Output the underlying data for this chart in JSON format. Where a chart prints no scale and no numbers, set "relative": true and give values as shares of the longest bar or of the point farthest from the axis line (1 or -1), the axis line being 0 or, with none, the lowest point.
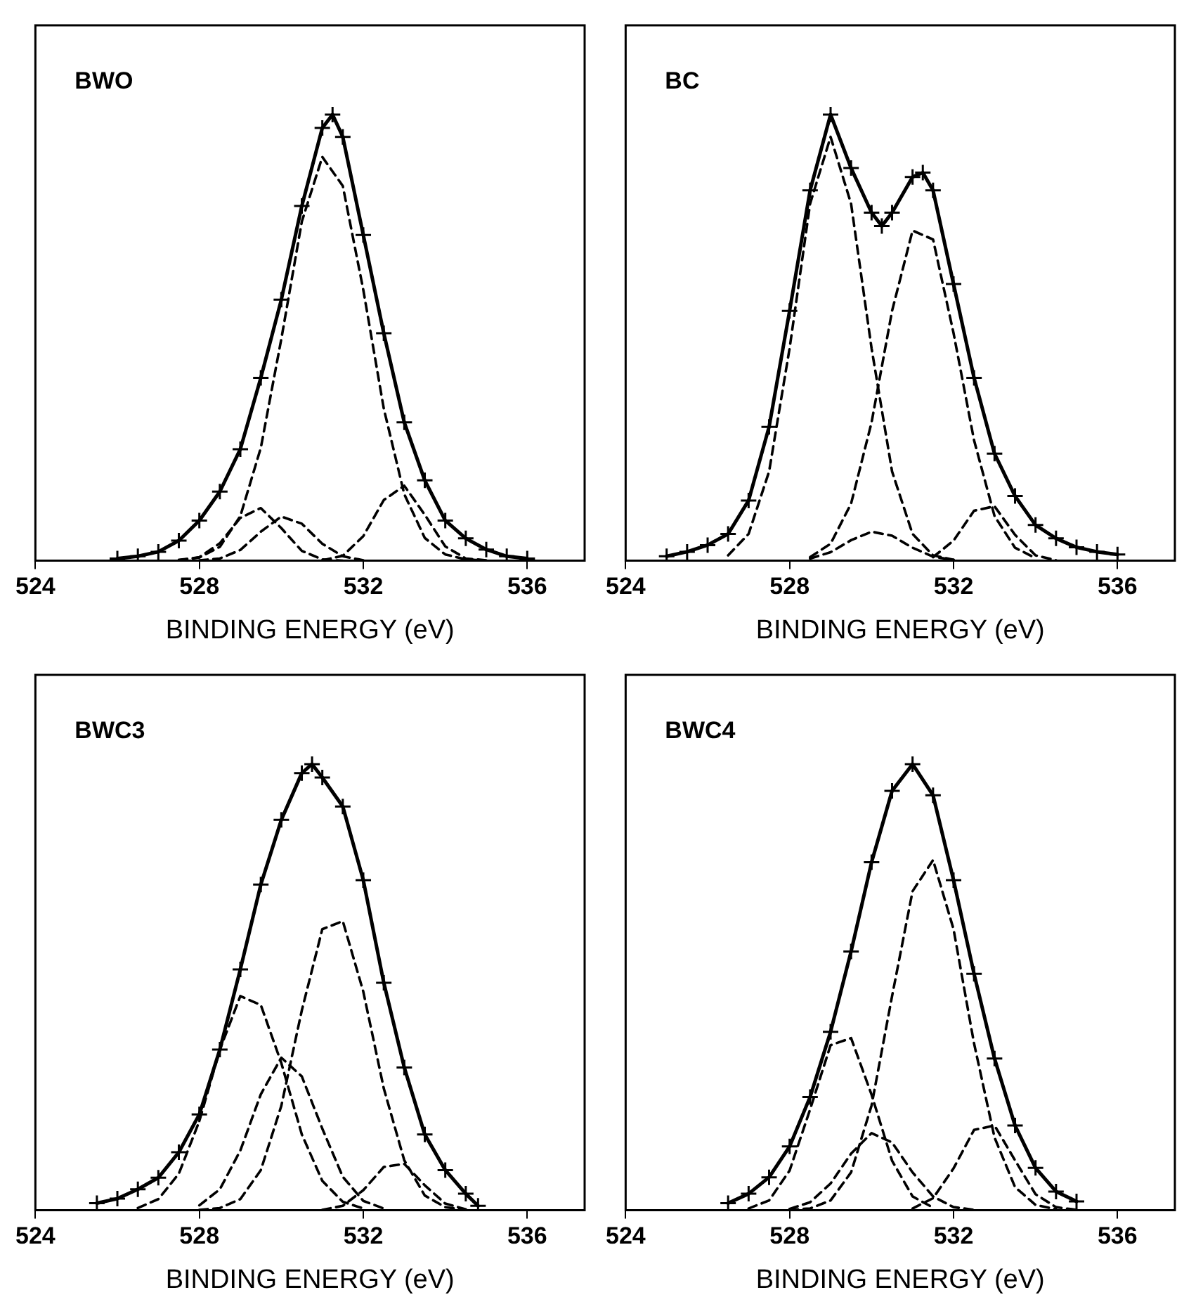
{
  "chart_data": [
    {
      "type": "line",
      "relative": true,
      "xlabel": "BINDING ENERGY (eV)",
      "xlim": [
        524,
        537.4
      ],
      "xticks": [
        524,
        528,
        532,
        536
      ],
      "annotations": [
        "BWO"
      ],
      "series": [
        {
          "color": "#000000",
          "marker": "cross",
          "line_style": "solid",
          "x": [
            526,
            526.5,
            527,
            527.5,
            528,
            528.5,
            529,
            529.5,
            530,
            530.5,
            531,
            531.25,
            531.5,
            532,
            532.5,
            533,
            533.5,
            534,
            534.5,
            535,
            535.5,
            536
          ],
          "values": [
            0.005,
            0.01,
            0.02,
            0.045,
            0.09,
            0.155,
            0.25,
            0.41,
            0.585,
            0.795,
            0.97,
            1,
            0.95,
            0.73,
            0.51,
            0.31,
            0.18,
            0.09,
            0.05,
            0.025,
            0.01,
            0.005
          ]
        },
        {
          "color": "#000000",
          "marker": "none",
          "line_style": "dashed",
          "x": [
            527.5,
            528,
            528.5,
            529,
            529.5,
            530,
            530.5,
            531,
            531.5,
            532,
            532.5,
            533,
            533.5,
            534,
            534.5,
            535
          ],
          "values": [
            0.002,
            0.007,
            0.031,
            0.1,
            0.253,
            0.497,
            0.76,
            0.905,
            0.84,
            0.607,
            0.341,
            0.149,
            0.051,
            0.014,
            0.003,
            0
          ]
        },
        {
          "color": "#000000",
          "marker": "none",
          "line_style": "dashed",
          "x": [
            527.5,
            528,
            528.5,
            529,
            529.5,
            530,
            530.5,
            531,
            531.5
          ],
          "values": [
            0.001,
            0.008,
            0.039,
            0.096,
            0.118,
            0.073,
            0.022,
            0.003,
            0
          ]
        },
        {
          "color": "#000000",
          "marker": "none",
          "line_style": "dashed",
          "x": [
            528,
            528.5,
            529,
            529.5,
            530,
            530.5,
            531,
            531.5,
            532
          ],
          "values": [
            0.001,
            0.005,
            0.024,
            0.065,
            0.099,
            0.083,
            0.038,
            0.01,
            0.001
          ]
        },
        {
          "color": "#000000",
          "marker": "none",
          "line_style": "dashed",
          "x": [
            531,
            531.5,
            532,
            532.5,
            533,
            533.5,
            534,
            534.5,
            535
          ],
          "values": [
            0.001,
            0.011,
            0.055,
            0.136,
            0.168,
            0.103,
            0.032,
            0.005,
            0.001
          ]
        }
      ]
    },
    {
      "type": "line",
      "relative": true,
      "xlabel": "BINDING ENERGY (eV)",
      "xlim": [
        524,
        537.4
      ],
      "xticks": [
        524,
        528,
        532,
        536
      ],
      "annotations": [
        "BC"
      ],
      "series": [
        {
          "color": "#000000",
          "marker": "cross",
          "line_style": "solid",
          "x": [
            525,
            525.5,
            526,
            526.5,
            527,
            527.5,
            528,
            528.5,
            529,
            529.5,
            530,
            530.25,
            530.5,
            531,
            531.25,
            531.5,
            532,
            532.5,
            533,
            533.5,
            534,
            534.5,
            535,
            535.5,
            536
          ],
          "values": [
            0.01,
            0.02,
            0.035,
            0.06,
            0.135,
            0.3,
            0.56,
            0.83,
            1,
            0.88,
            0.78,
            0.75,
            0.78,
            0.86,
            0.87,
            0.83,
            0.62,
            0.41,
            0.24,
            0.145,
            0.08,
            0.05,
            0.03,
            0.02,
            0.014
          ]
        },
        {
          "color": "#000000",
          "marker": "none",
          "line_style": "dashed",
          "x": [
            526.5,
            527,
            527.5,
            528,
            528.5,
            529,
            529.5,
            530,
            530.5,
            531,
            531.5,
            532
          ],
          "values": [
            0.012,
            0.06,
            0.2,
            0.476,
            0.8,
            0.95,
            0.8,
            0.476,
            0.2,
            0.06,
            0.012,
            0.002
          ]
        },
        {
          "color": "#000000",
          "marker": "none",
          "line_style": "dashed",
          "x": [
            528.5,
            529,
            529.5,
            530,
            530.5,
            531,
            531.5,
            532,
            532.5,
            533,
            533.5,
            534
          ],
          "values": [
            0.008,
            0.038,
            0.128,
            0.31,
            0.56,
            0.74,
            0.72,
            0.51,
            0.27,
            0.1,
            0.029,
            0.006
          ]
        },
        {
          "color": "#000000",
          "marker": "none",
          "line_style": "dashed",
          "x": [
            528.5,
            529,
            529.5,
            530,
            530.5,
            531,
            531.5,
            532
          ],
          "values": [
            0.005,
            0.019,
            0.046,
            0.065,
            0.056,
            0.029,
            0.009,
            0.002
          ]
        },
        {
          "color": "#000000",
          "marker": "none",
          "line_style": "dashed",
          "x": [
            531.5,
            532,
            532.5,
            533,
            533.5,
            534,
            534.5
          ],
          "values": [
            0.008,
            0.045,
            0.112,
            0.122,
            0.058,
            0.012,
            0.001
          ]
        }
      ]
    },
    {
      "type": "line",
      "relative": true,
      "xlabel": "BINDING ENERGY (eV)",
      "xlim": [
        524,
        537.4
      ],
      "xticks": [
        524,
        528,
        532,
        536
      ],
      "annotations": [
        "BWC3"
      ],
      "series": [
        {
          "color": "#000000",
          "marker": "cross",
          "line_style": "solid",
          "x": [
            525.5,
            526,
            526.5,
            527,
            527.5,
            528,
            528.5,
            529,
            529.5,
            530,
            530.5,
            530.75,
            531,
            531.5,
            532,
            532.5,
            533,
            533.5,
            534,
            534.5,
            534.8
          ],
          "values": [
            0.016,
            0.026,
            0.047,
            0.073,
            0.13,
            0.215,
            0.36,
            0.54,
            0.73,
            0.875,
            0.98,
            1,
            0.97,
            0.905,
            0.74,
            0.51,
            0.32,
            0.17,
            0.09,
            0.037,
            0.01
          ]
        },
        {
          "color": "#000000",
          "marker": "none",
          "line_style": "dashed",
          "x": [
            528,
            528.5,
            529,
            529.5,
            530,
            530.5,
            531,
            531.5,
            532,
            532.5,
            533,
            533.5,
            534,
            534.5
          ],
          "values": [
            0.001,
            0.005,
            0.025,
            0.09,
            0.234,
            0.448,
            0.63,
            0.648,
            0.49,
            0.273,
            0.112,
            0.033,
            0.007,
            0.001
          ]
        },
        {
          "color": "#000000",
          "marker": "none",
          "line_style": "dashed",
          "x": [
            526.5,
            527,
            527.5,
            528,
            528.5,
            529,
            529.5,
            530,
            530.5,
            531,
            531.5,
            532
          ],
          "values": [
            0.005,
            0.025,
            0.082,
            0.2,
            0.36,
            0.48,
            0.46,
            0.33,
            0.17,
            0.066,
            0.019,
            0.004
          ]
        },
        {
          "color": "#000000",
          "marker": "none",
          "line_style": "dashed",
          "x": [
            528,
            528.5,
            529,
            529.5,
            530,
            530.5,
            531,
            531.5,
            532,
            532.5
          ],
          "values": [
            0.011,
            0.047,
            0.134,
            0.26,
            0.342,
            0.3,
            0.183,
            0.075,
            0.021,
            0.004
          ]
        },
        {
          "color": "#000000",
          "marker": "none",
          "line_style": "dashed",
          "x": [
            531,
            531.5,
            532,
            532.5,
            533,
            533.5,
            534,
            534.5
          ],
          "values": [
            0.001,
            0.01,
            0.045,
            0.097,
            0.104,
            0.056,
            0.015,
            0.002
          ]
        }
      ]
    },
    {
      "type": "line",
      "relative": true,
      "xlabel": "BINDING ENERGY (eV)",
      "xlim": [
        524,
        537.4
      ],
      "xticks": [
        524,
        528,
        532,
        536
      ],
      "annotations": [
        "BWC4"
      ],
      "series": [
        {
          "color": "#000000",
          "marker": "cross",
          "line_style": "solid",
          "x": [
            526.5,
            527,
            527.5,
            528,
            528.5,
            529,
            529.5,
            530,
            530.5,
            531,
            531.5,
            532,
            532.5,
            533,
            533.5,
            534,
            534.5,
            535
          ],
          "values": [
            0.016,
            0.037,
            0.074,
            0.143,
            0.254,
            0.4,
            0.58,
            0.78,
            0.94,
            1,
            0.93,
            0.74,
            0.53,
            0.34,
            0.19,
            0.095,
            0.042,
            0.02
          ]
        },
        {
          "color": "#000000",
          "marker": "none",
          "line_style": "dashed",
          "x": [
            528,
            528.5,
            529,
            529.5,
            530,
            530.5,
            531,
            531.5,
            532,
            532.5,
            533,
            533.5,
            534,
            534.5
          ],
          "values": [
            0.001,
            0.004,
            0.022,
            0.085,
            0.235,
            0.48,
            0.715,
            0.785,
            0.63,
            0.374,
            0.163,
            0.052,
            0.012,
            0.002
          ]
        },
        {
          "color": "#000000",
          "marker": "none",
          "line_style": "dashed",
          "x": [
            527,
            527.5,
            528,
            528.5,
            529,
            529.5,
            530,
            530.5,
            531,
            531.5
          ],
          "values": [
            0.004,
            0.022,
            0.089,
            0.226,
            0.37,
            0.386,
            0.259,
            0.111,
            0.031,
            0.006
          ]
        },
        {
          "color": "#000000",
          "marker": "none",
          "line_style": "dashed",
          "x": [
            528,
            528.5,
            529,
            529.5,
            530,
            530.5,
            531,
            531.5,
            532,
            532.5
          ],
          "values": [
            0.003,
            0.018,
            0.06,
            0.127,
            0.173,
            0.152,
            0.085,
            0.031,
            0.007,
            0.001
          ]
        },
        {
          "color": "#000000",
          "marker": "none",
          "line_style": "dashed",
          "x": [
            531,
            531.5,
            532,
            532.5,
            533,
            533.5,
            534,
            534.5,
            535
          ],
          "values": [
            0.004,
            0.027,
            0.094,
            0.18,
            0.19,
            0.112,
            0.036,
            0.007,
            0.001
          ]
        }
      ]
    }
  ]
}
